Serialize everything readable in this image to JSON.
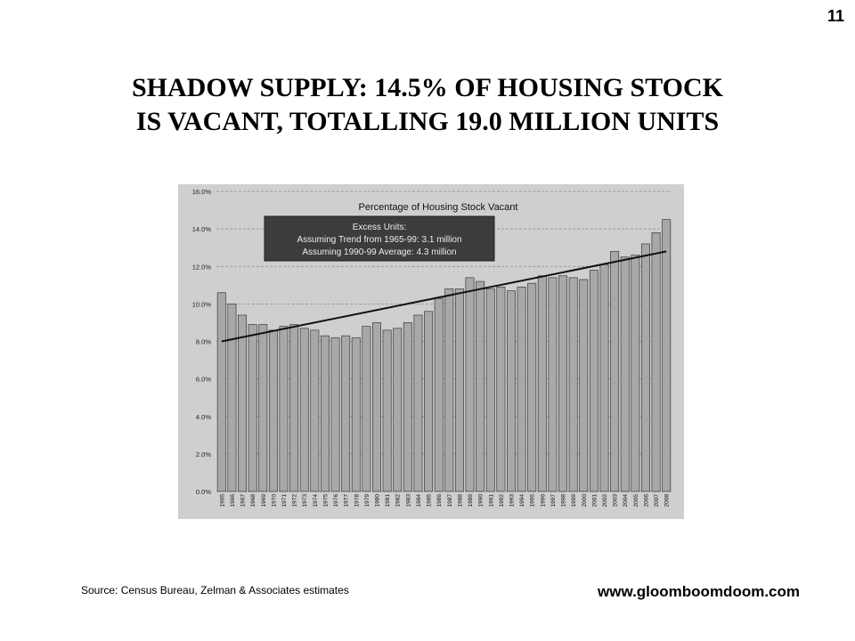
{
  "page_number": "11",
  "slide": {
    "title_line1": "SHADOW SUPPLY: 14.5% OF HOUSING STOCK",
    "title_line2": "IS VACANT, TOTALLING 19.0 MILLION UNITS"
  },
  "footer": {
    "source": "Source: Census Bureau, Zelman & Associates estimates",
    "website": "www.gloomboomdoom.com"
  },
  "chart_data": {
    "type": "bar",
    "title": "Percentage of Housing Stock Vacant",
    "annotation": {
      "heading": "Excess Units:",
      "line1": "Assuming Trend from 1965-99: 3.1 million",
      "line2": "Assuming 1990-99 Average: 4.3 million"
    },
    "categories": [
      "1965",
      "1966",
      "1967",
      "1968",
      "1969",
      "1970",
      "1971",
      "1972",
      "1973",
      "1974",
      "1975",
      "1976",
      "1977",
      "1978",
      "1979",
      "1980",
      "1981",
      "1982",
      "1983",
      "1984",
      "1985",
      "1986",
      "1987",
      "1988",
      "1989",
      "1990",
      "1991",
      "1992",
      "1993",
      "1994",
      "1995",
      "1996",
      "1997",
      "1998",
      "1999",
      "2000",
      "2001",
      "2002",
      "2003",
      "2004",
      "2005",
      "2006",
      "2007",
      "2008"
    ],
    "values": [
      10.6,
      10.0,
      9.4,
      8.9,
      8.9,
      8.6,
      8.8,
      8.9,
      8.7,
      8.6,
      8.3,
      8.2,
      8.3,
      8.2,
      8.8,
      9.0,
      8.6,
      8.7,
      9.0,
      9.4,
      9.6,
      10.3,
      10.8,
      10.8,
      11.4,
      11.2,
      10.8,
      10.9,
      10.7,
      10.9,
      11.1,
      11.5,
      11.4,
      11.5,
      11.4,
      11.3,
      11.8,
      12.1,
      12.8,
      12.5,
      12.6,
      13.2,
      13.8,
      14.5
    ],
    "trend": {
      "start": 8.0,
      "end": 12.8
    },
    "yticks": [
      "0.0%",
      "2.0%",
      "4.0%",
      "6.0%",
      "8.0%",
      "10.0%",
      "12.0%",
      "14.0%",
      "16.0%"
    ],
    "ylim": [
      0,
      16
    ],
    "grid": "horizontal dashed",
    "colors": {
      "bar": "#a8a8a8",
      "bar_edge": "#3a3a3a",
      "trend": "#111111",
      "annotation_box": "#3c3c3c",
      "panel": "#cfcfcf"
    }
  }
}
